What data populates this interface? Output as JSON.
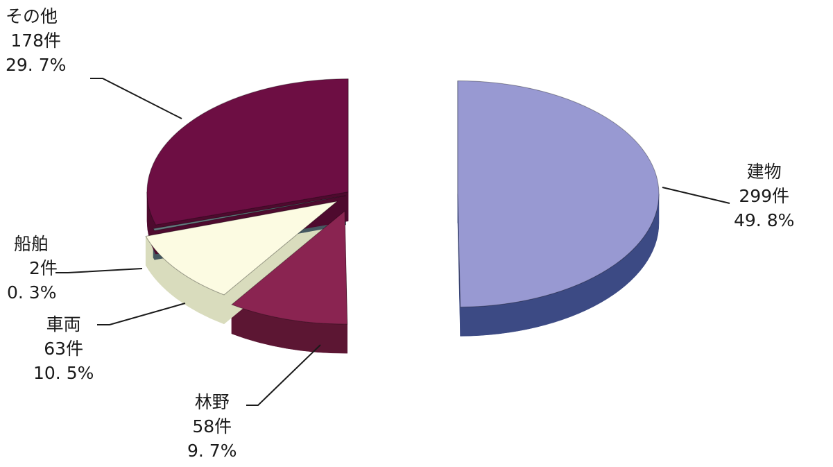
{
  "chart_data": {
    "type": "pie",
    "style": "3d-exploded",
    "title": "",
    "slices": [
      {
        "name": "建物",
        "count": 299,
        "count_label": "299件",
        "percent": 49.8,
        "percent_label": "49. 8%",
        "color": "#9899d2",
        "side_color": "#3c4a84"
      },
      {
        "name": "林野",
        "count": 58,
        "count_label": "58件",
        "percent": 9.7,
        "percent_label": "9. 7%",
        "color": "#8a2451",
        "side_color": "#5c1633"
      },
      {
        "name": "車両",
        "count": 63,
        "count_label": "63件",
        "percent": 10.5,
        "percent_label": "10. 5%",
        "color": "#fcfbe2",
        "side_color": "#d9dcbd"
      },
      {
        "name": "船舶",
        "count": 2,
        "count_label": "2件",
        "percent": 0.3,
        "percent_label": "0. 3%",
        "color": "#667a80",
        "side_color": "#455860"
      },
      {
        "name": "その他",
        "count": 178,
        "count_label": "178件",
        "percent": 29.7,
        "percent_label": "29. 7%",
        "color": "#6d0e43",
        "side_color": "#4e0a2e"
      }
    ]
  }
}
